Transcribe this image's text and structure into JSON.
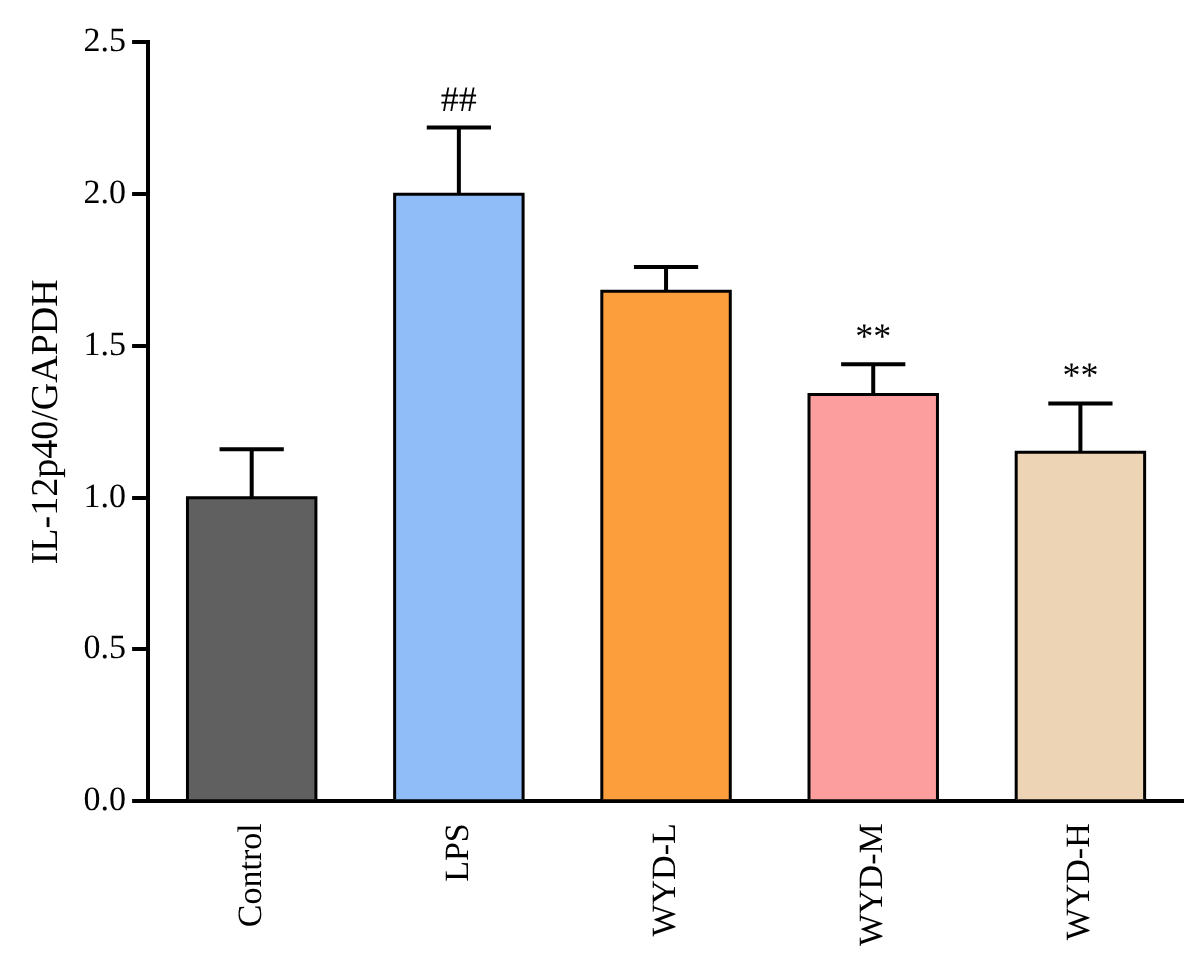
{
  "chart_data": {
    "type": "bar",
    "ylabel": "IL-12p40/GAPDH",
    "categories": [
      "Control",
      "LPS",
      "WYD-L",
      "WYD-M",
      "WYD-H"
    ],
    "values": [
      1.0,
      2.0,
      1.68,
      1.34,
      1.15
    ],
    "colors": [
      "#606060",
      "#90bdf8",
      "#fd9e3c",
      "#fc9e9e",
      "#ecd4b4"
    ],
    "errors": [
      [
        1.0,
        1.16
      ],
      [
        2.0,
        2.22
      ],
      [
        1.68,
        1.76
      ],
      [
        1.34,
        1.44
      ],
      [
        1.15,
        1.31
      ]
    ],
    "ylim": [
      0,
      2.5
    ],
    "yticks": [
      {
        "value": 0,
        "label": "0.0"
      },
      0.5,
      {
        "value": 1,
        "label": "1.0"
      },
      1.5,
      {
        "value": 2,
        "label": "2.0"
      },
      2.5
    ],
    "annotations": [
      {
        "text": "##",
        "x": "LPS",
        "y": 2.22
      },
      {
        "text": "**",
        "x": "WYD-M",
        "y": 1.44
      },
      {
        "text": "**",
        "x": "WYD-H",
        "y": 1.31
      }
    ],
    "grid": false,
    "legend": false
  }
}
